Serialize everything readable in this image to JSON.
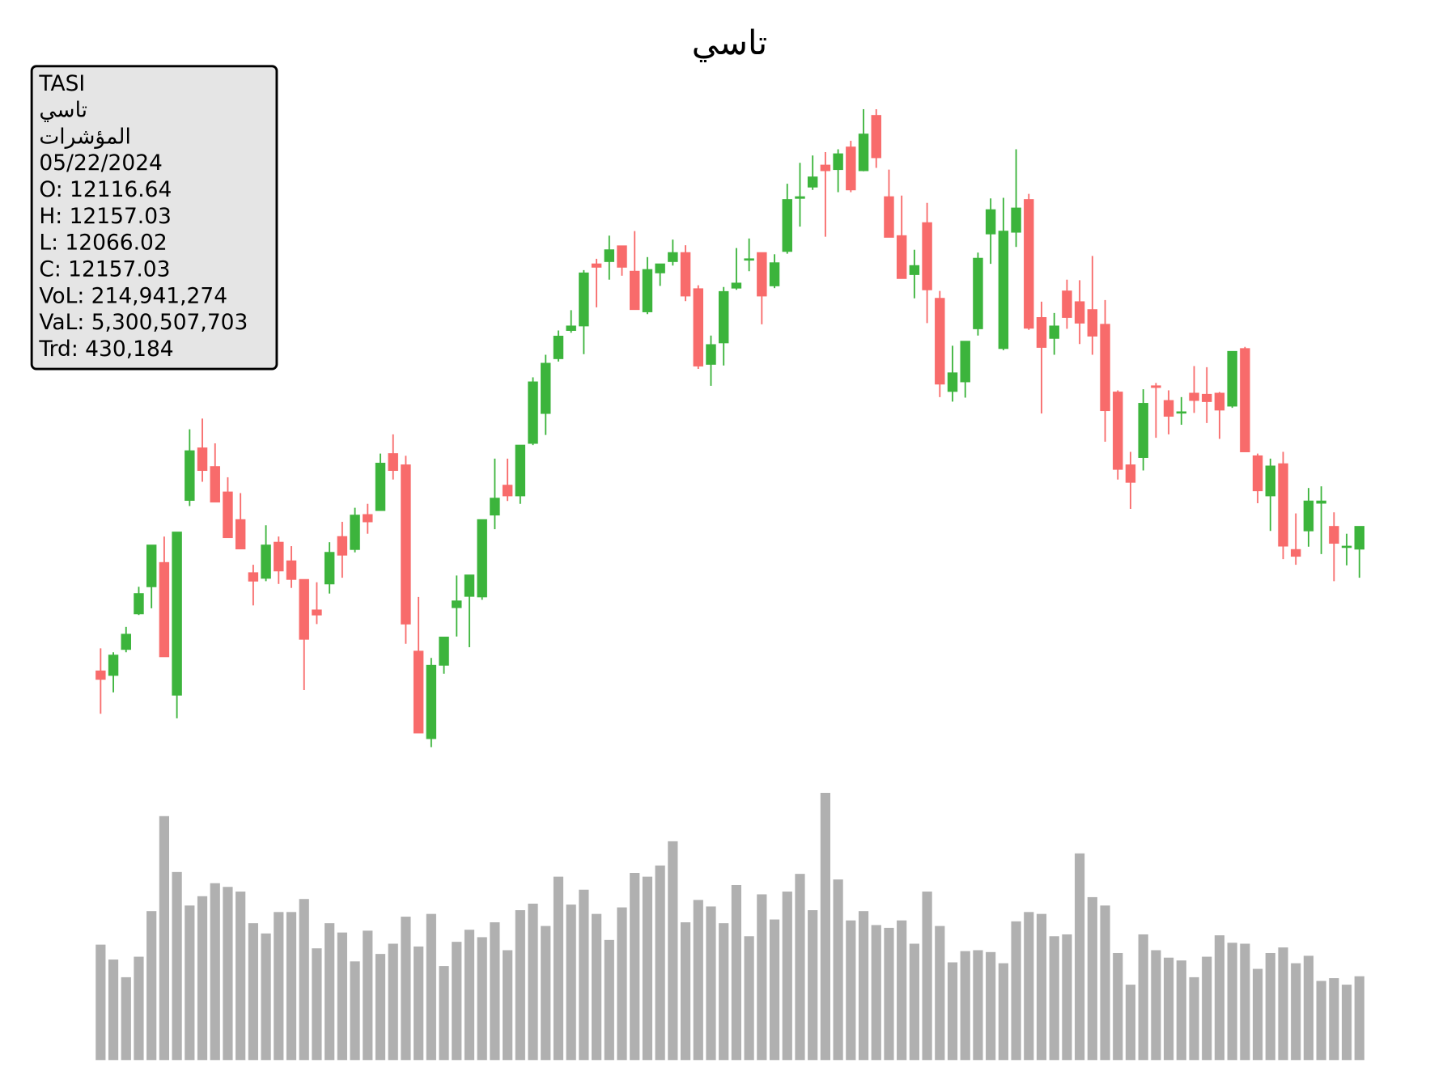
{
  "chart_data": {
    "type": "candlestick",
    "title": "تاسي",
    "info_box": [
      "TASI",
      "تاسي",
      "المؤشرات",
      "05/22/2024",
      "O: 12116.64",
      "H: 12157.03",
      "L: 12066.02",
      "C: 12157.03",
      "VoL: 214,941,274",
      "VaL: 5,300,507,703",
      "Trd: 430,184"
    ],
    "up_color": "#3cb43c",
    "down_color": "#f86b6b",
    "volume_color": "#b0b0b0",
    "ylim": [
      11750,
      12900
    ],
    "volume_ylim": [
      0,
      700000000
    ],
    "open": [
      11901,
      11893,
      11939,
      12002,
      12050,
      12093,
      11858,
      12203,
      12296,
      12263,
      12218,
      12169,
      12075,
      12065,
      12129,
      12096,
      12063,
      12009,
      12055,
      12139,
      12116,
      12178,
      12185,
      12286,
      12266,
      11936,
      11781,
      11911,
      12013,
      12033,
      12032,
      12177,
      12230,
      12211,
      12304,
      12357,
      12454,
      12504,
      12512,
      12622,
      12626,
      12654,
      12609,
      12537,
      12606,
      12626,
      12642,
      12578,
      12444,
      12482,
      12579,
      12629,
      12642,
      12583,
      12644,
      12738,
      12758,
      12797,
      12789,
      12829,
      12787,
      12885,
      12741,
      12672,
      12603,
      12695,
      12561,
      12396,
      12413,
      12507,
      12675,
      12472,
      12678,
      12736,
      12527,
      12490,
      12574,
      12555,
      12541,
      12515,
      12395,
      12266,
      12279,
      12406,
      12380,
      12358,
      12393,
      12391,
      12393,
      12370,
      12472,
      12282,
      12211,
      12268,
      12116,
      12149,
      12198,
      12157,
      12121,
      12116.64
    ],
    "high": [
      11941,
      11934,
      11979,
      12050,
      12124,
      12139,
      12147,
      12329,
      12348,
      12304,
      12244,
      12216,
      12089,
      12159,
      12139,
      12122,
      12063,
      12058,
      12129,
      12165,
      12190,
      12197,
      12286,
      12320,
      12282,
      12032,
      11924,
      11961,
      12070,
      12071,
      12169,
      12277,
      12277,
      12301,
      12421,
      12461,
      12504,
      12540,
      12611,
      12631,
      12672,
      12654,
      12680,
      12634,
      12622,
      12665,
      12655,
      12584,
      12495,
      12581,
      12650,
      12667,
      12642,
      12639,
      12764,
      12801,
      12814,
      12820,
      12825,
      12840,
      12896,
      12896,
      12789,
      12743,
      12647,
      12730,
      12574,
      12477,
      12485,
      12642,
      12738,
      12739,
      12825,
      12746,
      12555,
      12535,
      12594,
      12593,
      12636,
      12558,
      12398,
      12289,
      12400,
      12411,
      12398,
      12386,
      12441,
      12439,
      12395,
      12467,
      12475,
      12286,
      12277,
      12289,
      12180,
      12225,
      12228,
      12182,
      12144,
      12157.03
    ],
    "low": [
      11825,
      11863,
      11934,
      12000,
      12012,
      11926,
      11817,
      12193,
      12236,
      12200,
      12137,
      12117,
      12017,
      12060,
      12055,
      12048,
      11867,
      11984,
      12038,
      12066,
      12111,
      12144,
      12185,
      12240,
      11949,
      11791,
      11766,
      11896,
      11962,
      11943,
      12027,
      12152,
      12202,
      12197,
      12301,
      12319,
      12449,
      12500,
      12462,
      12545,
      12594,
      12601,
      12541,
      12533,
      12583,
      12619,
      12556,
      12436,
      12406,
      12442,
      12576,
      12609,
      12515,
      12579,
      12640,
      12688,
      12753,
      12670,
      12749,
      12749,
      12786,
      12792,
      12669,
      12596,
      12561,
      12517,
      12386,
      12378,
      12385,
      12495,
      12622,
      12469,
      12652,
      12505,
      12357,
      12461,
      12507,
      12480,
      12461,
      12307,
      12240,
      12188,
      12256,
      12314,
      12320,
      12337,
      12358,
      12340,
      12312,
      12367,
      12289,
      12198,
      12149,
      12099,
      12089,
      12121,
      12108,
      12060,
      12088,
      12066.02
    ],
    "close": [
      11886,
      11929,
      11966,
      12038,
      12124,
      11926,
      12147,
      12291,
      12256,
      12200,
      12137,
      12117,
      12060,
      12124,
      12078,
      12063,
      11957,
      12000,
      12111,
      12106,
      12177,
      12165,
      12269,
      12256,
      11984,
      11791,
      11911,
      11961,
      12025,
      12071,
      12169,
      12207,
      12211,
      12301,
      12413,
      12446,
      12494,
      12512,
      12606,
      12616,
      12647,
      12616,
      12541,
      12612,
      12622,
      12642,
      12565,
      12441,
      12479,
      12573,
      12588,
      12631,
      12565,
      12624,
      12736,
      12741,
      12776,
      12787,
      12817,
      12753,
      12852,
      12810,
      12669,
      12596,
      12619,
      12576,
      12409,
      12429,
      12485,
      12632,
      12718,
      12680,
      12721,
      12508,
      12474,
      12512,
      12527,
      12517,
      12494,
      12362,
      12258,
      12235,
      12375,
      12403,
      12352,
      12360,
      12380,
      12378,
      12363,
      12467,
      12289,
      12220,
      12264,
      12122,
      12104,
      12202,
      12202,
      12127,
      12122,
      12157.03
    ],
    "volume": [
      296100000,
      257900000,
      212500000,
      265100000,
      382100000,
      625700000,
      482400000,
      396400000,
      420300000,
      453700000,
      444200000,
      432200000,
      351000000,
      324800000,
      379700000,
      379700000,
      413100000,
      286600000,
      351000000,
      327200000,
      253100000,
      331900000,
      272200000,
      298500000,
      367800000,
      291300000,
      374900000,
      241200000,
      303300000,
      334300000,
      315200000,
      353400000,
      281800000,
      384500000,
      401200000,
      343900000,
      470400000,
      398800000,
      437000000,
      374900000,
      308100000,
      391600000,
      480000000,
      470400000,
      499100000,
      561200000,
      353400000,
      410700000,
      394000000,
      351000000,
      448900000,
      317600000,
      425100000,
      360600000,
      432200000,
      477600000,
      384500000,
      685400000,
      463300000,
      358200000,
      382100000,
      346300000,
      339100000,
      358200000,
      298500000,
      432200000,
      343900000,
      250700000,
      279400000,
      281800000,
      277000000,
      248400000,
      355800000,
      379700000,
      374900000,
      317600000,
      322400000,
      530100000,
      417900000,
      396400000,
      274600000,
      193400000,
      322400000,
      281800000,
      262700000,
      255500000,
      212500000,
      265100000,
      320000000,
      300900000,
      298500000,
      234000000,
      274600000,
      288900000,
      248400000,
      267500000,
      203000000,
      210100000,
      193400000,
      214941274
    ]
  }
}
